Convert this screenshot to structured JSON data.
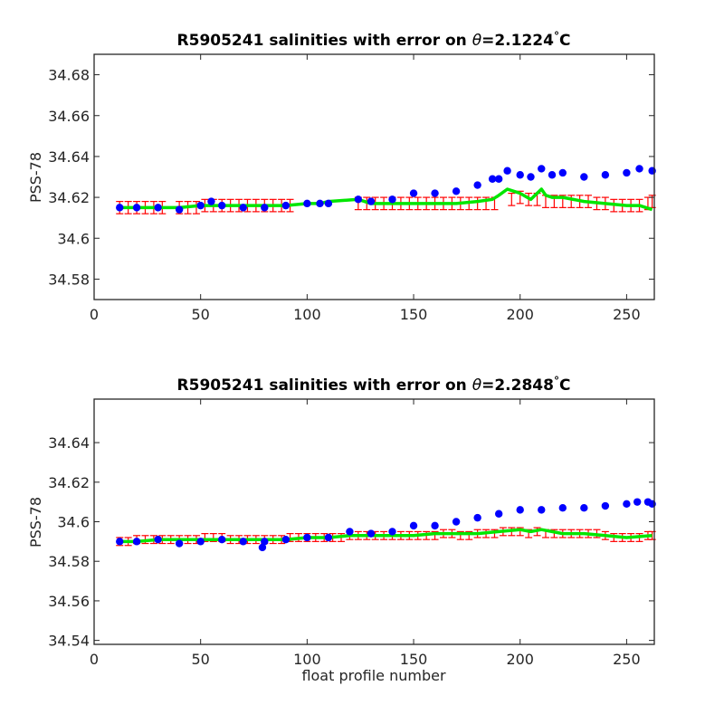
{
  "xlabel": "float profile number",
  "colors": {
    "raw": "#0000ff",
    "calibrated": "#00e600",
    "error": "#ff0000",
    "axes": "#262626"
  },
  "chart_data": [
    {
      "type": "scatter",
      "title_prefix": "R5905241 salinities with error on ",
      "theta_symbol": "θ",
      "title_value": "=2.1224",
      "title_degree": "°",
      "title_unit": "C",
      "ylabel": "PSS-78",
      "xlim": [
        0,
        263
      ],
      "ylim": [
        34.57,
        34.69
      ],
      "xticks": [
        0,
        50,
        100,
        150,
        200,
        250
      ],
      "xtick_labels": [
        "0",
        "50",
        "100",
        "150",
        "200",
        "250"
      ],
      "yticks": [
        34.58,
        34.6,
        34.62,
        34.64,
        34.66,
        34.68
      ],
      "ytick_labels": [
        "34.58",
        "34.6",
        "34.62",
        "34.64",
        "34.66",
        "34.68"
      ],
      "series": [
        {
          "role": "raw",
          "x": [
            12,
            20,
            30,
            40,
            50,
            55,
            60,
            70,
            80,
            90,
            100,
            106,
            110,
            124,
            130,
            140,
            150,
            160,
            170,
            180,
            187,
            190,
            194,
            200,
            205,
            210,
            215,
            220,
            230,
            240,
            250,
            256,
            262
          ],
          "y": [
            34.615,
            34.615,
            34.615,
            34.614,
            34.616,
            34.618,
            34.616,
            34.615,
            34.615,
            34.616,
            34.617,
            34.617,
            34.617,
            34.619,
            34.618,
            34.619,
            34.622,
            34.622,
            34.623,
            34.626,
            34.629,
            34.629,
            34.633,
            34.631,
            34.63,
            34.634,
            34.631,
            34.632,
            34.63,
            34.631,
            34.632,
            34.634,
            34.633
          ]
        },
        {
          "role": "calibrated",
          "x": [
            12,
            20,
            30,
            40,
            50,
            60,
            70,
            80,
            90,
            100,
            106,
            110,
            124,
            130,
            140,
            150,
            160,
            170,
            180,
            187,
            190,
            194,
            200,
            205,
            210,
            212,
            215,
            220,
            230,
            240,
            250,
            256,
            262
          ],
          "y": [
            34.615,
            34.615,
            34.615,
            34.615,
            34.616,
            34.616,
            34.616,
            34.616,
            34.616,
            34.617,
            34.617,
            34.618,
            34.619,
            34.617,
            34.617,
            34.617,
            34.617,
            34.617,
            34.618,
            34.619,
            34.621,
            34.624,
            34.622,
            34.619,
            34.624,
            34.621,
            34.62,
            34.62,
            34.618,
            34.617,
            34.616,
            34.616,
            34.614
          ]
        },
        {
          "role": "error_bars",
          "x": [
            12,
            16,
            20,
            24,
            28,
            32,
            40,
            44,
            48,
            52,
            56,
            60,
            64,
            68,
            72,
            76,
            80,
            84,
            88,
            92,
            124,
            128,
            132,
            136,
            140,
            144,
            148,
            152,
            156,
            160,
            164,
            168,
            172,
            176,
            180,
            184,
            188,
            196,
            200,
            204,
            208,
            212,
            216,
            220,
            224,
            228,
            232,
            236,
            240,
            244,
            248,
            252,
            256,
            260,
            262
          ],
          "y": [
            34.615,
            34.615,
            34.615,
            34.615,
            34.615,
            34.615,
            34.615,
            34.615,
            34.615,
            34.616,
            34.616,
            34.616,
            34.616,
            34.616,
            34.616,
            34.616,
            34.616,
            34.616,
            34.616,
            34.616,
            34.617,
            34.617,
            34.617,
            34.617,
            34.617,
            34.617,
            34.617,
            34.617,
            34.617,
            34.617,
            34.617,
            34.617,
            34.617,
            34.617,
            34.617,
            34.617,
            34.617,
            34.619,
            34.62,
            34.619,
            34.619,
            34.618,
            34.618,
            34.618,
            34.618,
            34.618,
            34.618,
            34.617,
            34.617,
            34.616,
            34.616,
            34.616,
            34.616,
            34.617,
            34.618
          ],
          "err": 0.003
        }
      ]
    },
    {
      "type": "scatter",
      "title_prefix": "R5905241 salinities with error on ",
      "theta_symbol": "θ",
      "title_value": "=2.2848",
      "title_degree": "°",
      "title_unit": "C",
      "ylabel": "PSS-78",
      "xlim": [
        0,
        263
      ],
      "ylim": [
        34.538,
        34.662
      ],
      "xticks": [
        0,
        50,
        100,
        150,
        200,
        250
      ],
      "xtick_labels": [
        "0",
        "50",
        "100",
        "150",
        "200",
        "250"
      ],
      "yticks": [
        34.54,
        34.56,
        34.58,
        34.6,
        34.62,
        34.64
      ],
      "ytick_labels": [
        "34.54",
        "34.56",
        "34.58",
        "34.6",
        "34.62",
        "34.64"
      ],
      "series": [
        {
          "role": "raw",
          "x": [
            12,
            20,
            30,
            40,
            50,
            60,
            70,
            79,
            80,
            90,
            100,
            110,
            120,
            130,
            140,
            150,
            160,
            170,
            180,
            190,
            200,
            210,
            220,
            230,
            240,
            250,
            255,
            260,
            262
          ],
          "y": [
            34.59,
            34.59,
            34.591,
            34.589,
            34.59,
            34.591,
            34.59,
            34.587,
            34.59,
            34.591,
            34.592,
            34.592,
            34.595,
            34.594,
            34.595,
            34.598,
            34.598,
            34.6,
            34.602,
            34.604,
            34.606,
            34.606,
            34.607,
            34.607,
            34.608,
            34.609,
            34.61,
            34.61,
            34.609
          ]
        },
        {
          "role": "calibrated",
          "x": [
            12,
            20,
            30,
            40,
            50,
            60,
            70,
            80,
            90,
            100,
            110,
            120,
            130,
            140,
            150,
            160,
            170,
            180,
            190,
            200,
            205,
            210,
            220,
            230,
            240,
            250,
            262
          ],
          "y": [
            34.59,
            34.59,
            34.591,
            34.591,
            34.591,
            34.591,
            34.591,
            34.591,
            34.591,
            34.592,
            34.592,
            34.593,
            34.593,
            34.593,
            34.593,
            34.594,
            34.594,
            34.594,
            34.595,
            34.596,
            34.595,
            34.596,
            34.594,
            34.594,
            34.593,
            34.592,
            34.593
          ]
        },
        {
          "role": "error_bars",
          "x": [
            12,
            16,
            20,
            24,
            28,
            32,
            36,
            40,
            44,
            48,
            52,
            56,
            60,
            64,
            68,
            72,
            76,
            80,
            84,
            88,
            92,
            96,
            100,
            104,
            108,
            112,
            116,
            120,
            124,
            128,
            132,
            136,
            140,
            144,
            148,
            152,
            156,
            160,
            164,
            168,
            172,
            176,
            180,
            184,
            188,
            192,
            196,
            200,
            204,
            208,
            212,
            216,
            220,
            224,
            228,
            232,
            236,
            240,
            244,
            248,
            252,
            256,
            260,
            262
          ],
          "y": [
            34.59,
            34.59,
            34.591,
            34.591,
            34.591,
            34.591,
            34.591,
            34.591,
            34.591,
            34.591,
            34.592,
            34.592,
            34.592,
            34.591,
            34.591,
            34.591,
            34.591,
            34.591,
            34.591,
            34.591,
            34.592,
            34.592,
            34.592,
            34.592,
            34.592,
            34.592,
            34.592,
            34.593,
            34.593,
            34.593,
            34.593,
            34.593,
            34.593,
            34.593,
            34.593,
            34.593,
            34.593,
            34.593,
            34.594,
            34.594,
            34.593,
            34.593,
            34.594,
            34.594,
            34.594,
            34.595,
            34.595,
            34.595,
            34.594,
            34.595,
            34.594,
            34.594,
            34.594,
            34.594,
            34.594,
            34.594,
            34.594,
            34.593,
            34.592,
            34.592,
            34.592,
            34.592,
            34.593,
            34.593
          ],
          "err": 0.002
        }
      ]
    }
  ]
}
